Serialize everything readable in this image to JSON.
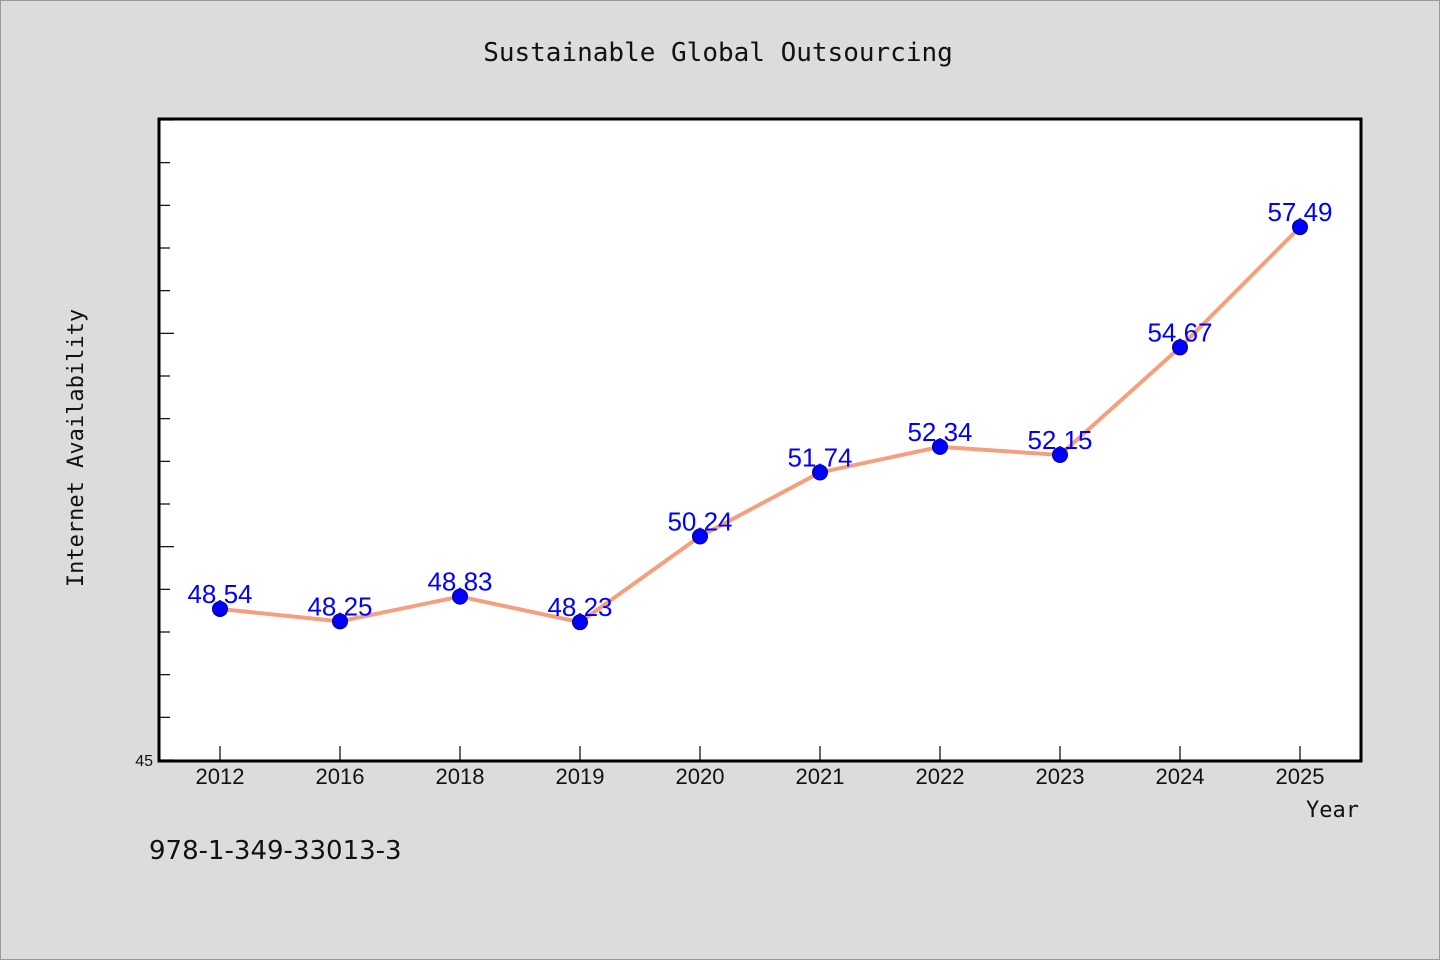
{
  "chart_data": {
    "type": "line",
    "title": "Sustainable Global Outsourcing",
    "xlabel": "Year",
    "ylabel": "Internet Availability",
    "categories": [
      "2012",
      "2016",
      "2018",
      "2019",
      "2020",
      "2021",
      "2022",
      "2023",
      "2024",
      "2025"
    ],
    "series": [
      {
        "values": [
          48.54,
          48.25,
          48.83,
          48.23,
          50.24,
          51.74,
          52.34,
          52.15,
          54.67,
          57.49
        ],
        "data_labels": [
          "48.54",
          "48.25",
          "48.83",
          "48.23",
          "50.24",
          "51.74",
          "52.34",
          "52.15",
          "54.67",
          "57.49"
        ],
        "line_color": "#f4a07e",
        "marker_color": "#0000ff"
      }
    ],
    "ylim": [
      45,
      60
    ],
    "ytick_labels": [
      "45"
    ],
    "yminor_step": 1,
    "grid": false,
    "legend": "none"
  },
  "footer": {
    "code": "978-1-349-33013-3"
  }
}
